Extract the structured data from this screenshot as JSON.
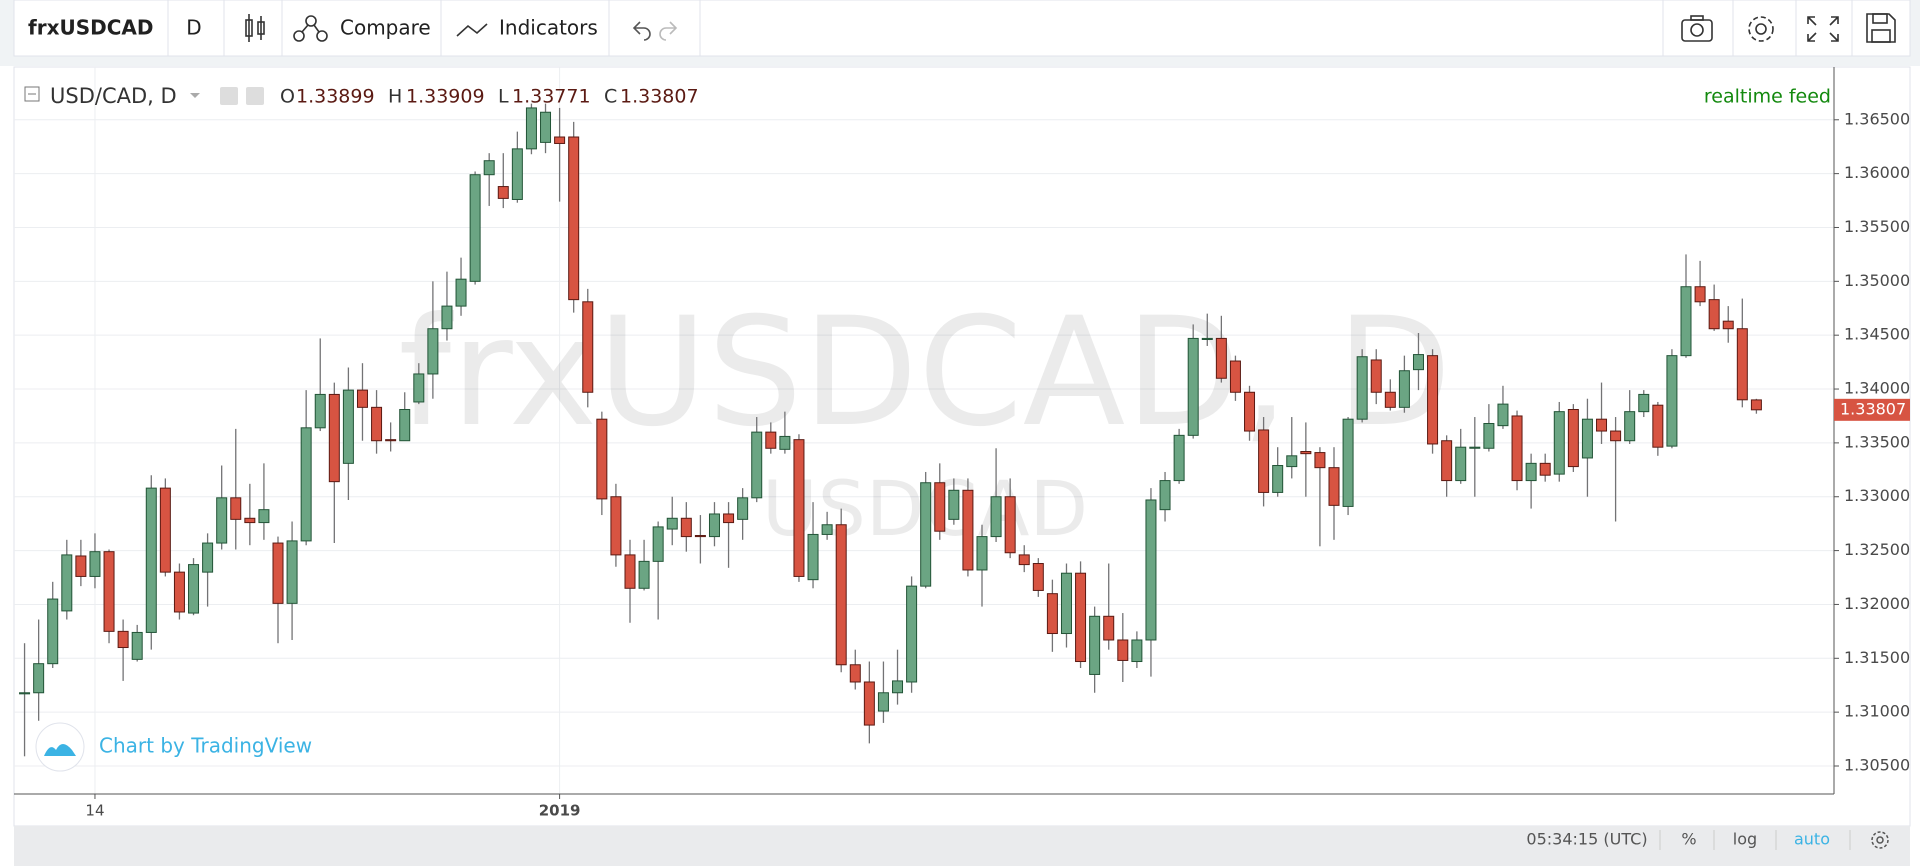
{
  "toolbar": {
    "symbol": "frxUSDCAD",
    "interval": "D",
    "compare": "Compare",
    "indicators": "Indicators"
  },
  "footer": {
    "time": "05:34:15 (UTC)",
    "percent": "%",
    "log": "log",
    "auto": "auto"
  },
  "chart_data": {
    "type": "candlestick",
    "watermark": "frxUSDCAD, D",
    "watermark_sub": "USDCAD",
    "status": "realtime feed",
    "branding": "Chart by TradingView",
    "legend_labels": [
      "O",
      "H",
      "L",
      "C"
    ],
    "categories": [
      null,
      null,
      null,
      null,
      null,
      "14",
      null,
      null,
      null,
      null,
      null,
      null,
      null,
      null,
      null,
      null,
      null,
      null,
      null,
      null,
      null,
      null,
      null,
      null,
      null,
      null,
      null,
      null,
      null,
      null,
      null,
      null,
      null,
      null,
      null,
      null,
      null,
      null,
      "2019",
      null,
      null,
      null,
      null,
      null,
      null,
      null,
      null,
      null,
      null,
      null,
      null,
      null,
      null,
      null,
      null,
      null,
      null,
      null,
      null,
      null,
      null,
      null,
      null,
      null,
      null,
      null,
      null,
      null,
      null,
      null,
      null,
      null,
      null,
      null,
      null,
      null,
      null,
      null,
      null,
      null,
      null,
      null,
      null,
      null,
      null,
      null,
      null,
      null,
      null,
      null,
      null,
      null,
      null,
      null,
      null,
      null,
      null,
      null,
      null,
      null,
      null,
      null,
      null,
      null,
      null,
      null,
      null,
      null,
      null,
      null,
      null,
      null,
      null,
      null,
      null,
      null,
      null,
      null,
      null,
      null,
      null,
      null,
      null,
      null
    ],
    "series": [
      {
        "name": "USD/CAD, D",
        "up_color": "#6ba583",
        "down_color": "#d75442",
        "open": [
          1.3117,
          1.3118,
          1.3145,
          1.3194,
          1.3245,
          1.3226,
          1.3249,
          1.3175,
          1.3149,
          1.3174,
          1.3308,
          1.323,
          1.3192,
          1.323,
          1.3257,
          1.3299,
          1.328,
          1.3276,
          1.3257,
          1.3201,
          1.3259,
          1.3364,
          1.3395,
          1.3331,
          1.3399,
          1.3383,
          1.3353,
          1.3352,
          1.3388,
          1.3414,
          1.3456,
          1.3477,
          1.35,
          1.3599,
          1.3588,
          1.3576,
          1.3623,
          1.3629,
          1.3634,
          1.3634,
          1.3481,
          1.3372,
          1.33,
          1.3246,
          1.3215,
          1.324,
          1.327,
          1.328,
          1.3264,
          1.3263,
          1.3284,
          1.3279,
          1.3299,
          1.336,
          1.3344,
          1.3353,
          1.3223,
          1.3265,
          1.3274,
          1.3144,
          1.3128,
          1.3101,
          1.3118,
          1.3128,
          1.3217,
          1.3313,
          1.3279,
          1.3306,
          1.3232,
          1.3263,
          1.33,
          1.3246,
          1.3238,
          1.321,
          1.3173,
          1.3229,
          1.3135,
          1.3189,
          1.3167,
          1.3147,
          1.3167,
          1.3288,
          1.3315,
          1.3357,
          1.3446,
          1.3447,
          1.3426,
          1.3397,
          1.3362,
          1.3304,
          1.3328,
          1.3342,
          1.3341,
          1.3327,
          1.3291,
          1.3372,
          1.3427,
          1.3397,
          1.3383,
          1.3418,
          1.3431,
          1.3352,
          1.3315,
          1.3345,
          1.3345,
          1.3366,
          1.3375,
          1.3315,
          1.3331,
          1.3321,
          1.3381,
          1.3336,
          1.3372,
          1.3361,
          1.3352,
          1.3379,
          1.3385,
          1.3347,
          1.3431,
          1.3495,
          1.3483,
          1.3463,
          1.3456,
          1.33899
        ],
        "high": [
          1.3164,
          1.3186,
          1.3221,
          1.326,
          1.326,
          1.3266,
          1.3251,
          1.3186,
          1.3181,
          1.332,
          1.3317,
          1.3238,
          1.3243,
          1.3266,
          1.3329,
          1.3363,
          1.3312,
          1.3331,
          1.3263,
          1.3277,
          1.3399,
          1.3447,
          1.3406,
          1.342,
          1.3424,
          1.3399,
          1.3369,
          1.3397,
          1.3424,
          1.35,
          1.3509,
          1.3522,
          1.3602,
          1.3619,
          1.3619,
          1.3639,
          1.3665,
          1.3665,
          1.3661,
          1.3648,
          1.3493,
          1.3379,
          1.3312,
          1.326,
          1.326,
          1.3277,
          1.33,
          1.3295,
          1.3283,
          1.3295,
          1.3295,
          1.3308,
          1.3374,
          1.3369,
          1.3379,
          1.3358,
          1.3295,
          1.3286,
          1.3289,
          1.3158,
          1.3147,
          1.3147,
          1.3158,
          1.3226,
          1.3323,
          1.3331,
          1.3317,
          1.3317,
          1.3274,
          1.3345,
          1.3317,
          1.3255,
          1.3243,
          1.3223,
          1.3238,
          1.324,
          1.3198,
          1.3238,
          1.3192,
          1.3175,
          1.3308,
          1.3323,
          1.3363,
          1.346,
          1.347,
          1.3468,
          1.3431,
          1.3403,
          1.3374,
          1.3346,
          1.3374,
          1.3369,
          1.3346,
          1.3346,
          1.3374,
          1.3437,
          1.3437,
          1.3409,
          1.3431,
          1.3452,
          1.3437,
          1.3357,
          1.3363,
          1.3374,
          1.3386,
          1.3403,
          1.338,
          1.334,
          1.334,
          1.3388,
          1.3386,
          1.3391,
          1.3406,
          1.3374,
          1.3399,
          1.3399,
          1.3388,
          1.3437,
          1.3525,
          1.3519,
          1.3497,
          1.3477,
          1.3484,
          1.33909
        ],
        "low": [
          1.3059,
          1.3092,
          1.3141,
          1.3186,
          1.3217,
          1.3215,
          1.3164,
          1.3129,
          1.3147,
          1.3158,
          1.3226,
          1.3186,
          1.319,
          1.3198,
          1.3251,
          1.3251,
          1.3255,
          1.326,
          1.3164,
          1.3167,
          1.3255,
          1.3361,
          1.3257,
          1.3297,
          1.3352,
          1.334,
          1.3342,
          1.3352,
          1.3386,
          1.3391,
          1.3445,
          1.3468,
          1.3497,
          1.357,
          1.3568,
          1.3573,
          1.3618,
          1.3619,
          1.3574,
          1.3471,
          1.3383,
          1.3283,
          1.3235,
          1.3183,
          1.3213,
          1.3186,
          1.3255,
          1.3249,
          1.3238,
          1.3254,
          1.3234,
          1.326,
          1.3295,
          1.334,
          1.334,
          1.3221,
          1.3215,
          1.326,
          1.3137,
          1.3121,
          1.3071,
          1.309,
          1.3107,
          1.3118,
          1.3215,
          1.326,
          1.3274,
          1.3226,
          1.3198,
          1.3258,
          1.3243,
          1.323,
          1.3207,
          1.3156,
          1.316,
          1.3141,
          1.3118,
          1.3158,
          1.3128,
          1.3141,
          1.3133,
          1.3277,
          1.3312,
          1.3354,
          1.344,
          1.3406,
          1.3389,
          1.3352,
          1.3291,
          1.33,
          1.3317,
          1.33,
          1.3254,
          1.326,
          1.3283,
          1.3369,
          1.3386,
          1.338,
          1.3378,
          1.3399,
          1.334,
          1.33,
          1.3312,
          1.33,
          1.3342,
          1.3363,
          1.3306,
          1.3289,
          1.3314,
          1.3314,
          1.3323,
          1.33,
          1.3349,
          1.3277,
          1.3349,
          1.3374,
          1.3338,
          1.3345,
          1.3429,
          1.3477,
          1.3454,
          1.3443,
          1.3383,
          1.33771
        ],
        "close": [
          1.3118,
          1.3145,
          1.3205,
          1.3246,
          1.3226,
          1.3249,
          1.3175,
          1.316,
          1.3174,
          1.3308,
          1.323,
          1.3193,
          1.3237,
          1.3257,
          1.3299,
          1.3279,
          1.3276,
          1.3288,
          1.3201,
          1.3259,
          1.3364,
          1.3395,
          1.3314,
          1.3399,
          1.3383,
          1.3352,
          1.3352,
          1.3381,
          1.3414,
          1.3456,
          1.3477,
          1.3502,
          1.3599,
          1.3612,
          1.3577,
          1.3623,
          1.3661,
          1.3657,
          1.3628,
          1.3483,
          1.3397,
          1.3298,
          1.3246,
          1.3215,
          1.324,
          1.3272,
          1.328,
          1.3263,
          1.3263,
          1.3284,
          1.3276,
          1.3299,
          1.336,
          1.3345,
          1.3356,
          1.3226,
          1.3265,
          1.3274,
          1.3144,
          1.3128,
          1.3088,
          1.3118,
          1.3129,
          1.3217,
          1.3313,
          1.3268,
          1.3306,
          1.3232,
          1.3263,
          1.33,
          1.3248,
          1.3237,
          1.3213,
          1.3173,
          1.3229,
          1.3147,
          1.3189,
          1.3167,
          1.3148,
          1.3167,
          1.3297,
          1.3315,
          1.3357,
          1.3447,
          1.3447,
          1.341,
          1.3397,
          1.3361,
          1.3304,
          1.3329,
          1.3338,
          1.334,
          1.3327,
          1.3292,
          1.3372,
          1.343,
          1.3397,
          1.3383,
          1.3417,
          1.3432,
          1.3349,
          1.3315,
          1.3346,
          1.3346,
          1.3368,
          1.3386,
          1.3315,
          1.3331,
          1.332,
          1.3379,
          1.3328,
          1.3372,
          1.3361,
          1.3352,
          1.3379,
          1.3395,
          1.3346,
          1.3431,
          1.3495,
          1.3481,
          1.3456,
          1.3456,
          1.339,
          1.33807
        ]
      }
    ],
    "ylim": [
      1.3024,
      1.3699
    ],
    "yticks": [
      {
        "value": 1.305,
        "label": "1.30500"
      },
      {
        "value": 1.31,
        "label": "1.31000"
      },
      {
        "value": 1.315,
        "label": "1.31500"
      },
      {
        "value": 1.32,
        "label": "1.32000"
      },
      {
        "value": 1.325,
        "label": "1.32500"
      },
      {
        "value": 1.33,
        "label": "1.33000"
      },
      {
        "value": 1.335,
        "label": "1.33500"
      },
      {
        "value": 1.34,
        "label": "1.34000"
      },
      {
        "value": 1.345,
        "label": "1.34500"
      },
      {
        "value": 1.35,
        "label": "1.35000"
      },
      {
        "value": 1.355,
        "label": "1.35500"
      },
      {
        "value": 1.36,
        "label": "1.36000"
      },
      {
        "value": 1.365,
        "label": "1.36500"
      }
    ],
    "grid": true
  }
}
